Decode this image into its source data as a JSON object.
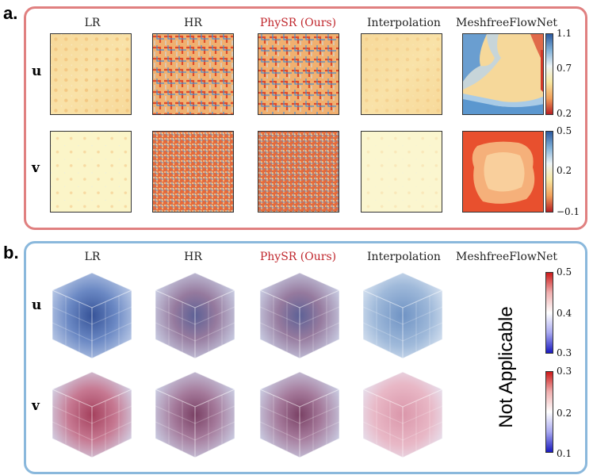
{
  "panel_a": {
    "label": "a.",
    "border_color": "#e08080",
    "columns": [
      "LR",
      "HR",
      "PhySR (Ours)",
      "Interpolation",
      "MeshfreeFlowNet"
    ],
    "rows": [
      "u",
      "v"
    ],
    "colorbar_u": {
      "max": "1.1",
      "mid": "0.7",
      "min": "0.2"
    },
    "colorbar_v": {
      "max": "0.5",
      "mid": "0.2",
      "min": "−0.1"
    }
  },
  "panel_b": {
    "label": "b.",
    "border_color": "#8ab8dc",
    "columns": [
      "LR",
      "HR",
      "PhySR (Ours)",
      "Interpolation",
      "MeshfreeFlowNet"
    ],
    "rows": [
      "u",
      "v"
    ],
    "not_applicable": "Not  Applicable",
    "colorbar_u": {
      "max": "0.5",
      "mid": "0.4",
      "min": "0.3"
    },
    "colorbar_v": {
      "max": "0.3",
      "mid": "0.2",
      "min": "0.1"
    }
  },
  "colors": {
    "highlight": "#c0272d"
  }
}
